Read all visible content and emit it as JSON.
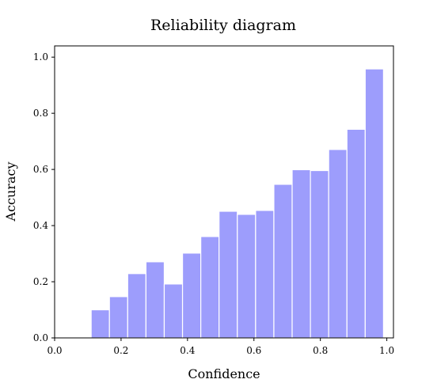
{
  "chart_data": {
    "type": "bar",
    "title": "Reliability diagram",
    "xlabel": "Confidence",
    "ylabel": "Accuracy",
    "xlim": [
      0.0,
      1.02
    ],
    "ylim": [
      0.0,
      1.04
    ],
    "x_ticks": [
      "0.0",
      "0.2",
      "0.4",
      "0.6",
      "0.8",
      "1.0"
    ],
    "y_ticks": [
      "0.0",
      "0.2",
      "0.4",
      "0.6",
      "0.8",
      "1.0"
    ],
    "bin_width": 0.055,
    "bins": [
      {
        "x": 0.1375,
        "value": 0.1
      },
      {
        "x": 0.1925,
        "value": 0.147
      },
      {
        "x": 0.2475,
        "value": 0.229
      },
      {
        "x": 0.3025,
        "value": 0.271
      },
      {
        "x": 0.3575,
        "value": 0.192
      },
      {
        "x": 0.4125,
        "value": 0.302
      },
      {
        "x": 0.4675,
        "value": 0.361
      },
      {
        "x": 0.5225,
        "value": 0.451
      },
      {
        "x": 0.5775,
        "value": 0.44
      },
      {
        "x": 0.6325,
        "value": 0.454
      },
      {
        "x": 0.6875,
        "value": 0.547
      },
      {
        "x": 0.7425,
        "value": 0.599
      },
      {
        "x": 0.7975,
        "value": 0.596
      },
      {
        "x": 0.8525,
        "value": 0.671
      },
      {
        "x": 0.9075,
        "value": 0.743
      },
      {
        "x": 0.9625,
        "value": 0.958
      }
    ],
    "bar_color": "#9d9dfc",
    "bar_edge_color": "#ffffff",
    "grid": false,
    "legend": "none"
  }
}
